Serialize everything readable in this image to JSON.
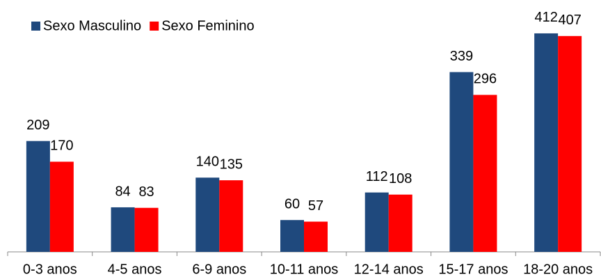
{
  "chart_data": {
    "type": "bar",
    "categories": [
      "0-3 anos",
      "4-5 anos",
      "6-9 anos",
      "10-11 anos",
      "12-14 anos",
      "15-17 anos",
      "18-20 anos"
    ],
    "series": [
      {
        "name": "Sexo Masculino",
        "color": "#1f497d",
        "values": [
          209,
          84,
          140,
          60,
          112,
          339,
          412
        ]
      },
      {
        "name": "Sexo Feminino",
        "color": "#ff0000",
        "values": [
          170,
          83,
          135,
          57,
          108,
          296,
          407
        ]
      }
    ],
    "ylim": [
      0,
      450
    ],
    "legend": "top-left"
  }
}
